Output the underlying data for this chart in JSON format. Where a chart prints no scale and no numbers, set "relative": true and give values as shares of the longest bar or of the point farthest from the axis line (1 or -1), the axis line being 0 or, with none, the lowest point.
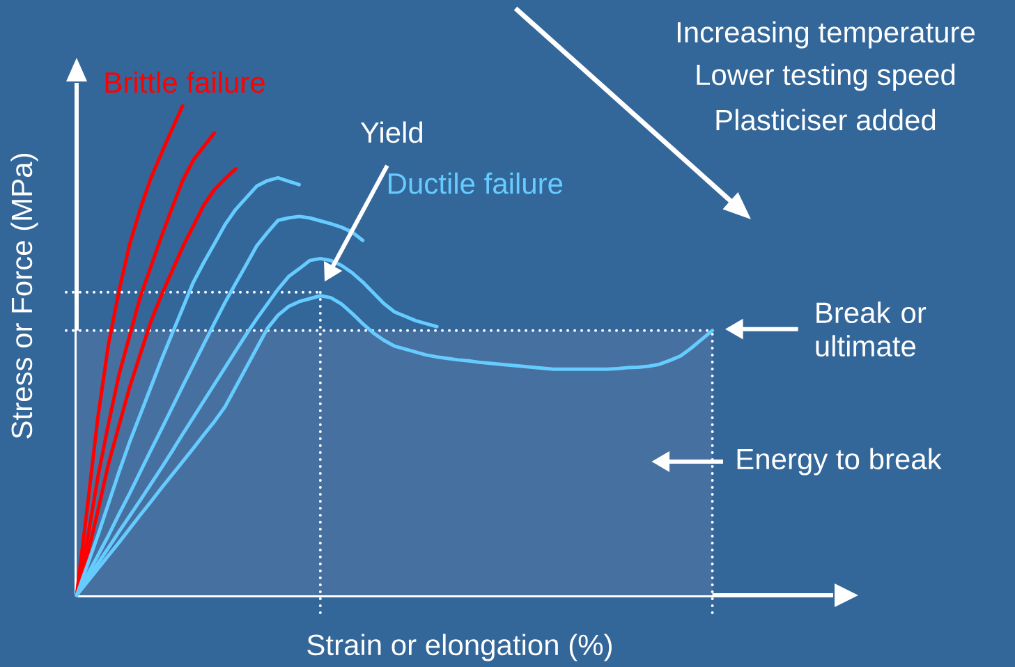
{
  "chart_data": {
    "type": "line",
    "relative": true,
    "xlabel": "Strain or elongation (%)",
    "ylabel": "Stress or Force (MPa)",
    "categories": [
      null,
      null,
      null,
      null,
      null,
      null,
      null,
      null,
      null,
      null,
      null,
      null,
      null,
      null,
      null,
      null,
      null,
      null,
      null,
      null,
      null,
      null,
      null,
      null,
      null,
      null,
      null,
      null,
      null,
      null,
      null,
      null,
      null,
      null,
      null,
      null,
      null,
      null,
      null,
      null,
      null,
      null,
      null,
      null,
      null,
      null,
      null,
      null,
      null,
      null,
      null,
      null,
      null,
      null,
      null,
      null,
      null,
      null,
      null,
      null,
      null
    ],
    "series": [
      {
        "name": "Brittle failure",
        "color": "#ff0000",
        "values": [
          0,
          0.178,
          0.363,
          0.512,
          0.622,
          0.717,
          0.789,
          0.852,
          0.903,
          0.952,
          1.0,
          null,
          null,
          null,
          null,
          null,
          null,
          null,
          null,
          null,
          null,
          null,
          null,
          null,
          null,
          null,
          null,
          null,
          null,
          null,
          null,
          null,
          null,
          null,
          null,
          null,
          null,
          null,
          null,
          null,
          null,
          null,
          null,
          null,
          null,
          null,
          null,
          null,
          null,
          null,
          null,
          null,
          null,
          null,
          null,
          null,
          null,
          null,
          null,
          null,
          null
        ]
      },
      {
        "color": "#ff0000",
        "values": [
          0,
          0.112,
          0.241,
          0.35,
          0.451,
          0.53,
          0.609,
          0.671,
          0.733,
          0.791,
          0.847,
          0.889,
          0.917,
          0.945,
          null,
          null,
          null,
          null,
          null,
          null,
          null,
          null,
          null,
          null,
          null,
          null,
          null,
          null,
          null,
          null,
          null,
          null,
          null,
          null,
          null,
          null,
          null,
          null,
          null,
          null,
          null,
          null,
          null,
          null,
          null,
          null,
          null,
          null,
          null,
          null,
          null,
          null,
          null,
          null,
          null,
          null,
          null,
          null,
          null,
          null,
          null
        ]
      },
      {
        "color": "#ff0000",
        "values": [
          0,
          0.081,
          0.172,
          0.268,
          0.347,
          0.425,
          0.492,
          0.559,
          0.613,
          0.662,
          0.711,
          0.754,
          0.797,
          0.829,
          0.851,
          0.871,
          null,
          null,
          null,
          null,
          null,
          null,
          null,
          null,
          null,
          null,
          null,
          null,
          null,
          null,
          null,
          null,
          null,
          null,
          null,
          null,
          null,
          null,
          null,
          null,
          null,
          null,
          null,
          null,
          null,
          null,
          null,
          null,
          null,
          null,
          null,
          null,
          null,
          null,
          null,
          null,
          null,
          null,
          null,
          null,
          null
        ]
      },
      {
        "name": "Ductile failure",
        "color": "#66ccff",
        "values": [
          0,
          0.061,
          0.122,
          0.187,
          0.252,
          0.313,
          0.369,
          0.425,
          0.481,
          0.534,
          0.586,
          0.639,
          0.68,
          0.718,
          0.757,
          0.788,
          0.812,
          0.836,
          0.847,
          0.853,
          0.846,
          0.839,
          null,
          null,
          null,
          null,
          null,
          null,
          null,
          null,
          null,
          null,
          null,
          null,
          null,
          null,
          null,
          null,
          null,
          null,
          null,
          null,
          null,
          null,
          null,
          null,
          null,
          null,
          null,
          null,
          null,
          null,
          null,
          null,
          null,
          null,
          null,
          null,
          null,
          null,
          null
        ]
      },
      {
        "color": "#66ccff",
        "values": [
          0,
          0.041,
          0.081,
          0.122,
          0.166,
          0.208,
          0.252,
          0.296,
          0.339,
          0.383,
          0.427,
          0.47,
          0.513,
          0.556,
          0.598,
          0.637,
          0.675,
          0.714,
          0.741,
          0.766,
          0.771,
          0.774,
          0.771,
          0.765,
          0.759,
          0.752,
          0.742,
          0.725,
          null,
          null,
          null,
          null,
          null,
          null,
          null,
          null,
          null,
          null,
          null,
          null,
          null,
          null,
          null,
          null,
          null,
          null,
          null,
          null,
          null,
          null,
          null,
          null,
          null,
          null,
          null,
          null,
          null,
          null,
          null,
          null,
          null
        ]
      },
      {
        "color": "#66ccff",
        "values": [
          0,
          0.032,
          0.065,
          0.097,
          0.13,
          0.162,
          0.194,
          0.227,
          0.26,
          0.294,
          0.329,
          0.363,
          0.397,
          0.431,
          0.465,
          0.499,
          0.533,
          0.565,
          0.595,
          0.625,
          0.651,
          0.667,
          0.684,
          0.688,
          0.684,
          0.674,
          0.659,
          0.64,
          0.618,
          0.596,
          0.579,
          0.57,
          0.561,
          0.555,
          0.549,
          null,
          null,
          null,
          null,
          null,
          null,
          null,
          null,
          null,
          null,
          null,
          null,
          null,
          null,
          null,
          null,
          null,
          null,
          null,
          null,
          null,
          null,
          null,
          null,
          null,
          null
        ]
      },
      {
        "color": "#66ccff",
        "values": [
          0,
          0.027,
          0.054,
          0.081,
          0.108,
          0.136,
          0.164,
          0.191,
          0.219,
          0.246,
          0.273,
          0.3,
          0.328,
          0.355,
          0.385,
          0.425,
          0.465,
          0.505,
          0.545,
          0.572,
          0.59,
          0.6,
          0.606,
          0.612,
          0.608,
          0.595,
          0.576,
          0.555,
          0.536,
          0.521,
          0.509,
          0.503,
          0.497,
          0.491,
          0.487,
          0.484,
          0.481,
          0.479,
          0.476,
          0.474,
          0.472,
          0.47,
          0.468,
          0.466,
          0.464,
          0.462,
          0.462,
          0.462,
          0.462,
          0.462,
          0.462,
          0.463,
          0.465,
          0.466,
          0.468,
          0.472,
          0.48,
          0.489,
          0.505,
          0.523,
          0.541
        ]
      }
    ],
    "ref_lines": [
      {
        "axis": "y",
        "value": 0.619,
        "color": "#ffffff",
        "line_style": "dotted"
      },
      {
        "axis": "y",
        "value": 0.541,
        "color": "#ffffff",
        "line_style": "dotted"
      }
    ],
    "bands": [
      {
        "axis": "y",
        "from": 0,
        "to": 0.541,
        "label": "Energy to break",
        "color": "#46709f"
      }
    ],
    "annotations": [
      "Yield",
      "Break or ultimate",
      "Increasing temperature",
      "Lower testing speed",
      "Plasticiser added"
    ]
  }
}
